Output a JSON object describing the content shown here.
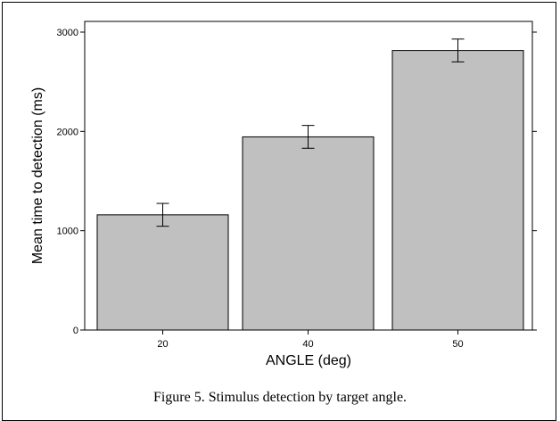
{
  "chart_data": {
    "type": "bar",
    "categories": [
      "20",
      "40",
      "50"
    ],
    "values": [
      1160,
      1945,
      2815
    ],
    "error": [
      115,
      115,
      115
    ],
    "xlabel": "ANGLE (deg)",
    "ylabel": "Mean time to detection (ms)",
    "ylim": [
      0,
      3000
    ],
    "yticks": [
      0,
      1000,
      2000,
      3000
    ],
    "grid": false,
    "bar_color": "#c0c0c0"
  },
  "caption": "Figure 5. Stimulus detection by target angle."
}
